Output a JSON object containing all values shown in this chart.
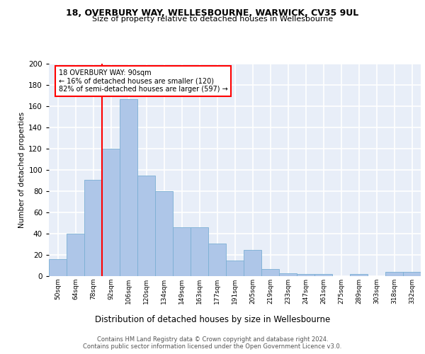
{
  "title1": "18, OVERBURY WAY, WELLESBOURNE, WARWICK, CV35 9UL",
  "title2": "Size of property relative to detached houses in Wellesbourne",
  "xlabel": "Distribution of detached houses by size in Wellesbourne",
  "ylabel": "Number of detached properties",
  "footer1": "Contains HM Land Registry data © Crown copyright and database right 2024.",
  "footer2": "Contains public sector information licensed under the Open Government Licence v3.0.",
  "annotation_line1": "18 OVERBURY WAY: 90sqm",
  "annotation_line2": "← 16% of detached houses are smaller (120)",
  "annotation_line3": "82% of semi-detached houses are larger (597) →",
  "bar_labels": [
    "50sqm",
    "64sqm",
    "78sqm",
    "92sqm",
    "106sqm",
    "120sqm",
    "134sqm",
    "149sqm",
    "163sqm",
    "177sqm",
    "191sqm",
    "205sqm",
    "219sqm",
    "233sqm",
    "247sqm",
    "261sqm",
    "275sqm",
    "289sqm",
    "303sqm",
    "318sqm",
    "332sqm"
  ],
  "bar_values": [
    16,
    40,
    91,
    120,
    167,
    95,
    80,
    46,
    46,
    31,
    15,
    25,
    7,
    3,
    2,
    2,
    0,
    2,
    0,
    4,
    4
  ],
  "bar_color": "#aec6e8",
  "bar_edge_color": "#7bafd4",
  "vline_color": "red",
  "background_color": "#e8eef8",
  "grid_color": "#ffffff",
  "ylim": [
    0,
    200
  ],
  "yticks": [
    0,
    20,
    40,
    60,
    80,
    100,
    120,
    140,
    160,
    180,
    200
  ]
}
